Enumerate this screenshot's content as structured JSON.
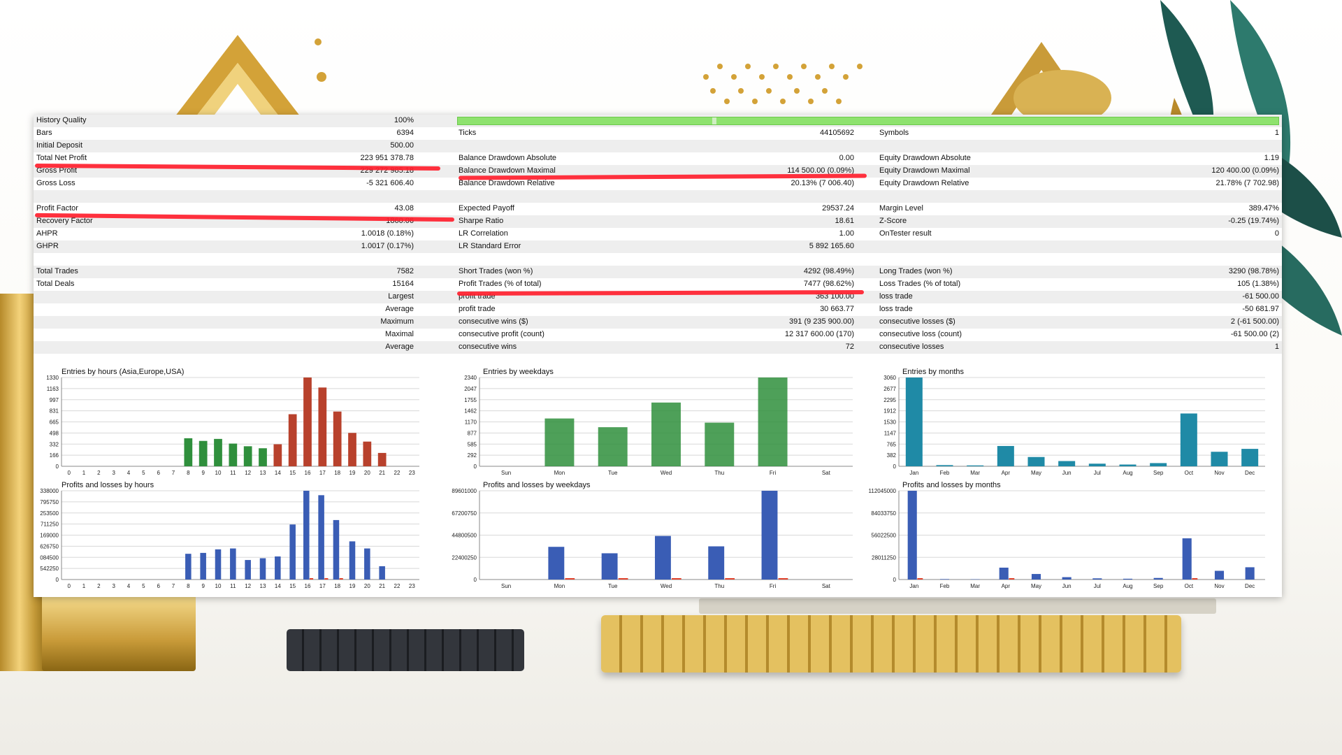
{
  "quality_row": {
    "label": "History Quality",
    "value": "100%"
  },
  "rows": [
    {
      "c1": [
        "Bars",
        "6394"
      ],
      "c2": [
        "Ticks",
        "44105692"
      ],
      "c3": [
        "Symbols",
        "1"
      ]
    },
    {
      "c1": [
        "Initial Deposit",
        "500.00"
      ],
      "c2": [
        "",
        ""
      ],
      "c3": [
        "",
        ""
      ]
    },
    {
      "c1": [
        "Total Net Profit",
        "223 951 378.78"
      ],
      "c2": [
        "Balance Drawdown Absolute",
        "0.00"
      ],
      "c3": [
        "Equity Drawdown Absolute",
        "1.19"
      ]
    },
    {
      "c1": [
        "Gross Profit",
        "229 272 985.18"
      ],
      "c2": [
        "Balance Drawdown Maximal",
        "114 500.00 (0.09%)"
      ],
      "c3": [
        "Equity Drawdown Maximal",
        "120 400.00 (0.09%)"
      ]
    },
    {
      "c1": [
        "Gross Loss",
        "-5 321 606.40"
      ],
      "c2": [
        "Balance Drawdown Relative",
        "20.13% (7 006.40)"
      ],
      "c3": [
        "Equity Drawdown Relative",
        "21.78% (7 702.98)"
      ]
    },
    {
      "c1": [
        "",
        ""
      ],
      "c2": [
        "",
        ""
      ],
      "c3": [
        "",
        ""
      ]
    },
    {
      "c1": [
        "Profit Factor",
        "43.08"
      ],
      "c2": [
        "Expected Payoff",
        "29537.24"
      ],
      "c3": [
        "Margin Level",
        "389.47%"
      ]
    },
    {
      "c1": [
        "Recovery Factor",
        "1860.06"
      ],
      "c2": [
        "Sharpe Ratio",
        "18.61"
      ],
      "c3": [
        "Z-Score",
        "-0.25 (19.74%)"
      ]
    },
    {
      "c1": [
        "AHPR",
        "1.0018 (0.18%)"
      ],
      "c2": [
        "LR Correlation",
        "1.00"
      ],
      "c3": [
        "OnTester result",
        "0"
      ]
    },
    {
      "c1": [
        "GHPR",
        "1.0017 (0.17%)"
      ],
      "c2": [
        "LR Standard Error",
        "5 892 165.60"
      ],
      "c3": [
        "",
        ""
      ]
    },
    {
      "c1": [
        "",
        ""
      ],
      "c2": [
        "",
        ""
      ],
      "c3": [
        "",
        ""
      ]
    },
    {
      "c1": [
        "Total Trades",
        "7582"
      ],
      "c2": [
        "Short Trades (won %)",
        "4292 (98.49%)"
      ],
      "c3": [
        "Long Trades (won %)",
        "3290 (98.78%)"
      ]
    },
    {
      "c1": [
        "Total Deals",
        "15164"
      ],
      "c2": [
        "Profit Trades (% of total)",
        "7477 (98.62%)"
      ],
      "c3": [
        "Loss Trades (% of total)",
        "105 (1.38%)"
      ]
    },
    {
      "r1": "Largest",
      "c2": [
        "profit trade",
        "363 100.00"
      ],
      "c3": [
        "loss trade",
        "-61 500.00"
      ]
    },
    {
      "r1": "Average",
      "c2": [
        "profit trade",
        "30 663.77"
      ],
      "c3": [
        "loss trade",
        "-50 681.97"
      ]
    },
    {
      "r1": "Maximum",
      "c2": [
        "consecutive wins ($)",
        "391 (9 235 900.00)"
      ],
      "c3": [
        "consecutive losses ($)",
        "2 (-61 500.00)"
      ]
    },
    {
      "r1": "Maximal",
      "c2": [
        "consecutive profit (count)",
        "12 317 600.00 (170)"
      ],
      "c3": [
        "consecutive loss (count)",
        "-61 500.00 (2)"
      ]
    },
    {
      "r1": "Average",
      "c2": [
        "consecutive wins",
        "72"
      ],
      "c3": [
        "consecutive losses",
        "1"
      ]
    }
  ],
  "colors": {
    "green": "#2f8f3c",
    "red": "#b8412c",
    "teal": "#1f8aa6",
    "blue": "#3a5db5",
    "lossRed": "#e0422c",
    "highlight": "#ff1f2e",
    "quality": "#8ee26e"
  },
  "chart_data": [
    {
      "type": "bar",
      "title": "Entries by hours (Asia,Europe,USA)",
      "categories": [
        "0",
        "1",
        "2",
        "3",
        "4",
        "5",
        "6",
        "7",
        "8",
        "9",
        "10",
        "11",
        "12",
        "13",
        "14",
        "15",
        "16",
        "17",
        "18",
        "19",
        "20",
        "21",
        "22",
        "23"
      ],
      "values": [
        0,
        0,
        0,
        0,
        0,
        0,
        0,
        0,
        420,
        380,
        410,
        340,
        300,
        270,
        330,
        780,
        1330,
        1180,
        820,
        500,
        370,
        200,
        0,
        0
      ],
      "ticks": [
        "1330",
        "1163",
        "997",
        "831",
        "665",
        "498",
        "332",
        "166",
        "0"
      ],
      "ylim": [
        0,
        1330
      ]
    },
    {
      "type": "bar",
      "title": "Entries by weekdays",
      "categories": [
        "Sun",
        "Mon",
        "Tue",
        "Wed",
        "Thu",
        "Fri",
        "Sat"
      ],
      "values": [
        0,
        1260,
        1030,
        1680,
        1150,
        2340,
        0
      ],
      "ticks": [
        "2340",
        "2047",
        "1755",
        "1462",
        "1170",
        "877",
        "585",
        "292",
        "0"
      ],
      "ylim": [
        0,
        2340
      ]
    },
    {
      "type": "bar",
      "title": "Entries by months",
      "categories": [
        "Jan",
        "Feb",
        "Mar",
        "Apr",
        "May",
        "Jun",
        "Jul",
        "Aug",
        "Sep",
        "Oct",
        "Nov",
        "Dec"
      ],
      "values": [
        3060,
        40,
        30,
        700,
        320,
        180,
        90,
        60,
        110,
        1820,
        500,
        600
      ],
      "ticks": [
        "3060",
        "2677",
        "2295",
        "1912",
        "1530",
        "1147",
        "765",
        "382",
        "0"
      ],
      "ylim": [
        0,
        3060
      ]
    },
    {
      "type": "bar",
      "title": "Profits and losses by hours",
      "categories": [
        "0",
        "1",
        "2",
        "3",
        "4",
        "5",
        "6",
        "7",
        "8",
        "9",
        "10",
        "11",
        "12",
        "13",
        "14",
        "15",
        "16",
        "17",
        "18",
        "19",
        "20",
        "21",
        "22",
        "23"
      ],
      "series": [
        {
          "values": [
            0,
            0,
            0,
            0,
            0,
            0,
            0,
            0,
            29,
            30,
            34,
            35,
            22,
            24,
            26,
            62,
            100,
            95,
            67,
            43,
            35,
            15,
            0,
            0
          ]
        },
        {
          "values": [
            0,
            0,
            0,
            0,
            0,
            0,
            0,
            0,
            0,
            0,
            0,
            0,
            0,
            0,
            0,
            0,
            1.5,
            1.5,
            1,
            0,
            0,
            0,
            0,
            0
          ]
        }
      ],
      "ticks": [
        "338000",
        "795750",
        "253500",
        "711250",
        "169000",
        "626750",
        "084500",
        "542250",
        "0"
      ],
      "ylim": [
        0,
        100
      ]
    },
    {
      "type": "bar",
      "title": "Profits and losses by weekdays",
      "categories": [
        "Sun",
        "Mon",
        "Tue",
        "Wed",
        "Thu",
        "Fri",
        "Sat"
      ],
      "series": [
        {
          "values": [
            0,
            33000000,
            26500000,
            44000000,
            33500000,
            89601000,
            0
          ]
        },
        {
          "values": [
            0,
            400000,
            350000,
            500000,
            400000,
            900000,
            0
          ]
        }
      ],
      "ticks": [
        "89601000",
        "67200750",
        "44800500",
        "22400250",
        "0"
      ],
      "ylim": [
        0,
        89601000
      ]
    },
    {
      "type": "bar",
      "title": "Profits and losses by months",
      "categories": [
        "Jan",
        "Feb",
        "Mar",
        "Apr",
        "May",
        "Jun",
        "Jul",
        "Aug",
        "Sep",
        "Oct",
        "Nov",
        "Dec"
      ],
      "series": [
        {
          "values": [
            112045000,
            600000,
            400000,
            15000000,
            7000000,
            3000000,
            1500000,
            1000000,
            2000000,
            52000000,
            11000000,
            15500000
          ]
        },
        {
          "values": [
            1200000,
            0,
            0,
            300000,
            0,
            0,
            0,
            0,
            0,
            500000,
            0,
            0
          ]
        }
      ],
      "ticks": [
        "112045000",
        "84033750",
        "56022500",
        "28011250",
        "0"
      ],
      "ylim": [
        0,
        112045000
      ]
    }
  ]
}
